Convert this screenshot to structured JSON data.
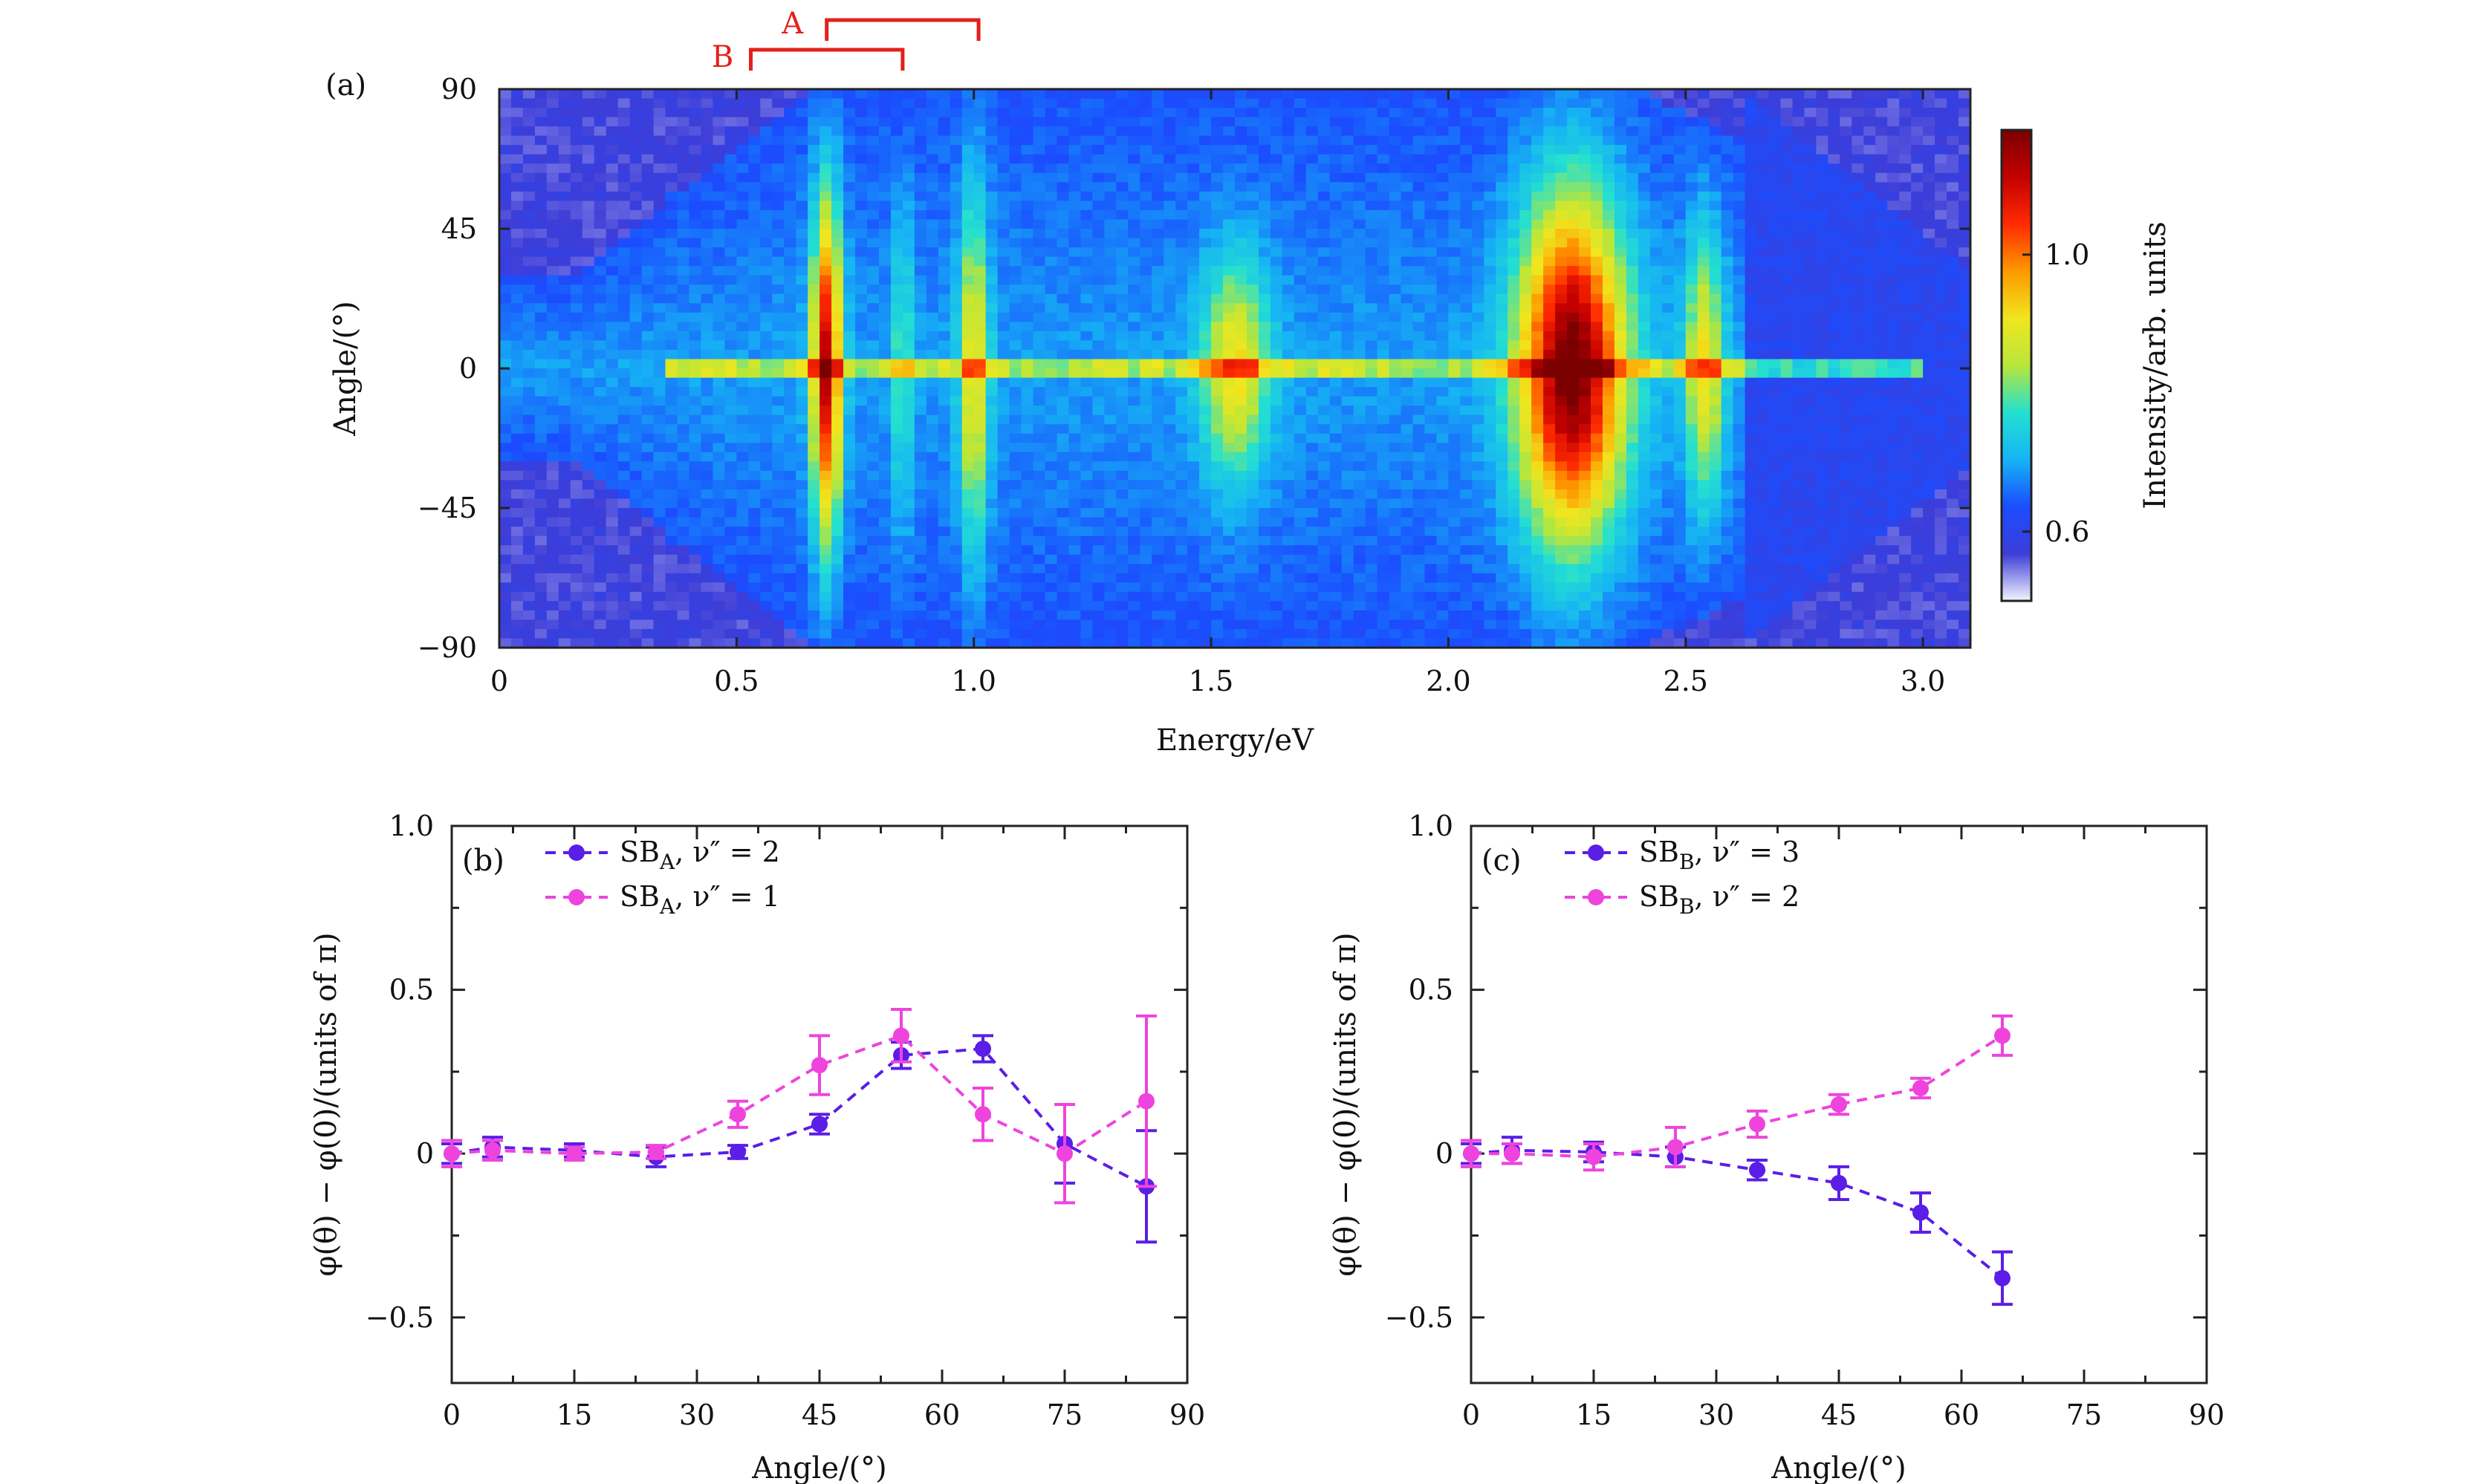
{
  "chart_data": [
    {
      "panel": "(a)",
      "type": "heatmap",
      "xlabel": "Energy/eV",
      "ylabel": "Angle/(°)",
      "xlim": [
        0,
        3.1
      ],
      "ylim": [
        -90,
        90
      ],
      "xticks": [
        "0",
        "0.5",
        "1.0",
        "1.5",
        "2.0",
        "2.5",
        "3.0"
      ],
      "xtick_values": [
        0,
        0.5,
        1.0,
        1.5,
        2.0,
        2.5,
        3.0
      ],
      "yticks": [
        "90",
        "45",
        "0",
        "−45",
        "−90"
      ],
      "ytick_values": [
        90,
        45,
        0,
        -45,
        -90
      ],
      "colorbar": {
        "label": "Intensity/arb. units",
        "range": [
          0.5,
          1.18
        ],
        "ticks": [
          "1.0",
          "0.6"
        ],
        "tick_values": [
          1.0,
          0.6
        ],
        "stops": [
          "#f4f4ff",
          "#3d3dd8",
          "#1a4dff",
          "#16b4f4",
          "#24e0d0",
          "#b8e63a",
          "#f0e61e",
          "#ff9900",
          "#ff2a00",
          "#c40000",
          "#7a0000"
        ]
      },
      "features": [
        {
          "energy": 0.69,
          "width": 0.03,
          "strength": 0.85,
          "spread": 55
        },
        {
          "energy": 0.85,
          "width": 0.02,
          "strength": 0.25,
          "spread": 50
        },
        {
          "energy": 1.0,
          "width": 0.03,
          "strength": 0.45,
          "spread": 60
        },
        {
          "energy": 1.55,
          "width": 0.07,
          "strength": 0.45,
          "spread": 35
        },
        {
          "energy": 2.26,
          "width": 0.11,
          "strength": 1.0,
          "spread": 55
        },
        {
          "energy": 2.54,
          "width": 0.04,
          "strength": 0.45,
          "spread": 45
        }
      ],
      "annotations": {
        "A": {
          "label": "A",
          "from": 0.69,
          "to": 1.01
        },
        "B": {
          "label": "B",
          "from": 0.53,
          "to": 0.85
        }
      }
    },
    {
      "panel": "(b)",
      "type": "line",
      "xlabel": "Angle/(°)",
      "ylabel": "φ(θ) − φ(0)/(units of π)",
      "xlim": [
        0,
        90
      ],
      "ylim": [
        -0.7,
        1.0
      ],
      "xticks": [
        "0",
        "15",
        "30",
        "45",
        "60",
        "75",
        "90"
      ],
      "xtick_values": [
        0,
        15,
        30,
        45,
        60,
        75,
        90
      ],
      "yticks": [
        "1.0",
        "0.5",
        "0",
        "−0.5"
      ],
      "ytick_values": [
        1.0,
        0.5,
        0,
        -0.5
      ],
      "series": [
        {
          "name_main": "SB",
          "name_sub": "A",
          "name_rest": ", ν″ = 2",
          "color": "#5a1ee6",
          "x": [
            0,
            5,
            15,
            25,
            35,
            45,
            55,
            65,
            75,
            85
          ],
          "y": [
            0.0,
            0.02,
            0.01,
            -0.01,
            0.005,
            0.09,
            0.3,
            0.32,
            0.03,
            -0.1
          ],
          "err": [
            0.03,
            0.03,
            0.02,
            0.03,
            0.02,
            0.03,
            0.04,
            0.04,
            0.12,
            0.17
          ]
        },
        {
          "name_main": "SB",
          "name_sub": "A",
          "name_rest": ", ν″ = 1",
          "color": "#ee44dd",
          "x": [
            0,
            5,
            15,
            25,
            35,
            45,
            55,
            65,
            75,
            85
          ],
          "y": [
            0.0,
            0.01,
            0.0,
            0.005,
            0.12,
            0.27,
            0.36,
            0.12,
            0.0,
            0.16
          ],
          "err": [
            0.04,
            0.03,
            0.02,
            0.02,
            0.04,
            0.09,
            0.08,
            0.08,
            0.15,
            0.26
          ]
        }
      ]
    },
    {
      "panel": "(c)",
      "type": "line",
      "xlabel": "Angle/(°)",
      "ylabel": "φ(θ) − φ(0)/(units of π)",
      "xlim": [
        0,
        90
      ],
      "ylim": [
        -0.7,
        1.0
      ],
      "xticks": [
        "0",
        "15",
        "30",
        "45",
        "60",
        "75",
        "90"
      ],
      "xtick_values": [
        0,
        15,
        30,
        45,
        60,
        75,
        90
      ],
      "yticks": [
        "1.0",
        "0.5",
        "0",
        "−0.5"
      ],
      "ytick_values": [
        1.0,
        0.5,
        0,
        -0.5
      ],
      "series": [
        {
          "name_main": "SB",
          "name_sub": "B",
          "name_rest": ", ν″ = 3",
          "color": "#5a1ee6",
          "x": [
            0,
            5,
            15,
            25,
            35,
            45,
            55,
            65
          ],
          "y": [
            0.0,
            0.01,
            0.005,
            -0.01,
            -0.05,
            -0.09,
            -0.18,
            -0.38
          ],
          "err": [
            0.03,
            0.04,
            0.03,
            0.03,
            0.03,
            0.05,
            0.06,
            0.08
          ]
        },
        {
          "name_main": "SB",
          "name_sub": "B",
          "name_rest": ", ν″ = 2",
          "color": "#ee44dd",
          "x": [
            0,
            5,
            15,
            25,
            35,
            45,
            55,
            65
          ],
          "y": [
            0.0,
            0.0,
            -0.01,
            0.02,
            0.09,
            0.15,
            0.2,
            0.36
          ],
          "err": [
            0.04,
            0.03,
            0.04,
            0.06,
            0.04,
            0.03,
            0.03,
            0.06
          ]
        }
      ]
    }
  ]
}
